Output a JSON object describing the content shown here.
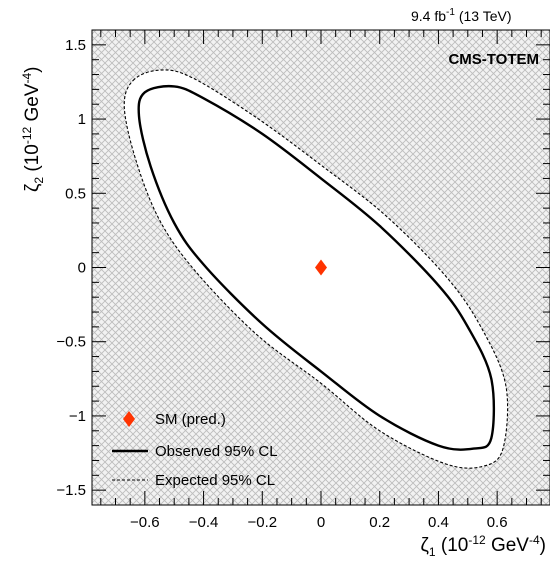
{
  "chart_data": {
    "type": "contour",
    "lumi_label": {
      "main": "9.4 fb",
      "sup": "-1",
      "tail": " (13 TeV)"
    },
    "experiment_label": "CMS-TOTEM",
    "xlabel": {
      "symbol": "ζ",
      "sub": "1",
      "unit_open": " (10",
      "unit_exp": "-12",
      "unit_mid": " GeV",
      "unit_exp2": "-4",
      "unit_close": ")"
    },
    "ylabel": {
      "symbol": "ζ",
      "sub": "2",
      "unit_open": " (10",
      "unit_exp": "-12",
      "unit_mid": " GeV",
      "unit_exp2": "-4",
      "unit_close": ")"
    },
    "xlim": [
      -0.78,
      0.78
    ],
    "ylim": [
      -1.6,
      1.6
    ],
    "x_ticks": [
      {
        "value": -0.6,
        "label": "−0.6"
      },
      {
        "value": -0.4,
        "label": "−0.4"
      },
      {
        "value": -0.2,
        "label": "−0.2"
      },
      {
        "value": 0,
        "label": "0"
      },
      {
        "value": 0.2,
        "label": "0.2"
      },
      {
        "value": 0.4,
        "label": "0.4"
      },
      {
        "value": 0.6,
        "label": "0.6"
      }
    ],
    "y_ticks": [
      {
        "value": -1.5,
        "label": "−1.5"
      },
      {
        "value": -1,
        "label": "−1"
      },
      {
        "value": -0.5,
        "label": "−0.5"
      },
      {
        "value": 0,
        "label": "0"
      },
      {
        "value": 0.5,
        "label": "0.5"
      },
      {
        "value": 1,
        "label": "1"
      },
      {
        "value": 1.5,
        "label": "1.5"
      }
    ],
    "excluded_region_fill": "crosshatch",
    "sm_point": {
      "x": 0,
      "y": 0,
      "label": "SM (pred.)",
      "color": "#ff3300"
    },
    "observed": {
      "label": "Observed 95% CL",
      "style": "solid",
      "points": [
        [
          -0.6,
          1.18
        ],
        [
          -0.5,
          1.22
        ],
        [
          -0.4,
          1.14
        ],
        [
          -0.2,
          0.9
        ],
        [
          0.0,
          0.6
        ],
        [
          0.2,
          0.28
        ],
        [
          0.4,
          -0.12
        ],
        [
          0.5,
          -0.4
        ],
        [
          0.58,
          -0.75
        ],
        [
          0.58,
          -1.15
        ],
        [
          0.52,
          -1.22
        ],
        [
          0.4,
          -1.2
        ],
        [
          0.2,
          -1.0
        ],
        [
          0.0,
          -0.7
        ],
        [
          -0.2,
          -0.38
        ],
        [
          -0.4,
          0.02
        ],
        [
          -0.5,
          0.3
        ],
        [
          -0.58,
          0.68
        ],
        [
          -0.62,
          1.02
        ]
      ]
    },
    "expected": {
      "label": "Expected 95% CL",
      "style": "dashed",
      "points": [
        [
          -0.64,
          1.26
        ],
        [
          -0.55,
          1.33
        ],
        [
          -0.44,
          1.28
        ],
        [
          -0.22,
          1.01
        ],
        [
          0.0,
          0.69
        ],
        [
          0.22,
          0.35
        ],
        [
          0.43,
          -0.07
        ],
        [
          0.55,
          -0.42
        ],
        [
          0.63,
          -0.8
        ],
        [
          0.62,
          -1.22
        ],
        [
          0.55,
          -1.34
        ],
        [
          0.42,
          -1.32
        ],
        [
          0.2,
          -1.1
        ],
        [
          0.0,
          -0.78
        ],
        [
          -0.22,
          -0.45
        ],
        [
          -0.43,
          -0.02
        ],
        [
          -0.55,
          0.32
        ],
        [
          -0.63,
          0.72
        ],
        [
          -0.67,
          1.08
        ]
      ]
    }
  }
}
